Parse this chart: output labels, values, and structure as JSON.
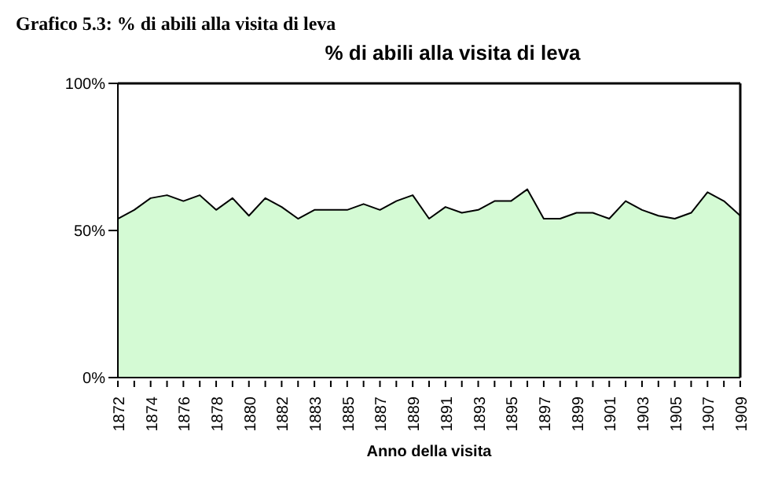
{
  "chart_data": {
    "type": "area",
    "title": "Grafico 5.3: % di abili alla visita di leva",
    "subtitle": "% di abili alla visita di leva",
    "xlabel": "Anno della visita",
    "categories": [
      "1872",
      null,
      "1874",
      null,
      "1876",
      null,
      "1878",
      null,
      "1880",
      null,
      "1882",
      null,
      "1883",
      null,
      "1885",
      null,
      "1887",
      null,
      "1889",
      null,
      "1891",
      null,
      "1893",
      null,
      "1895",
      null,
      "1897",
      null,
      "1899",
      null,
      "1901",
      null,
      "1903",
      null,
      "1905",
      null,
      "1907",
      null,
      "1909"
    ],
    "series": [
      {
        "color": "#d4fad4",
        "values": [
          54,
          57,
          61,
          62,
          60,
          62,
          57,
          61,
          55,
          61,
          58,
          54,
          57,
          57,
          57,
          59,
          57,
          60,
          62,
          54,
          58,
          56,
          57,
          60,
          60,
          64,
          54,
          54,
          56,
          56,
          54,
          60,
          57,
          55,
          54,
          56,
          63,
          60,
          55
        ]
      }
    ],
    "ylim": [
      0,
      100
    ],
    "yticks": [
      {
        "value": 0,
        "label": "0%"
      },
      {
        "value": 50,
        "label": "50%"
      },
      {
        "value": 100,
        "label": "100%"
      }
    ]
  }
}
